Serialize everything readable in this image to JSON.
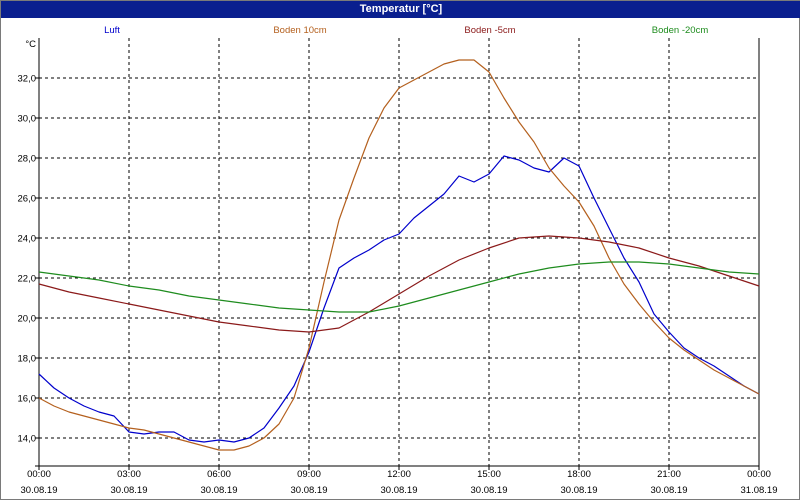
{
  "window": {
    "title": "Temperatur [°C]"
  },
  "chart_data": {
    "type": "line",
    "title": "Temperatur [°C]",
    "ylabel": "°C",
    "ylim": [
      12.6,
      34.0
    ],
    "y_ticks": [
      "14,0",
      "16,0",
      "18,0",
      "20,0",
      "22,0",
      "24,0",
      "26,0",
      "28,0",
      "30,0",
      "32,0"
    ],
    "y_tick_values": [
      14,
      16,
      18,
      20,
      22,
      24,
      26,
      28,
      30,
      32
    ],
    "xlim": [
      0,
      24
    ],
    "x_ticks": [
      {
        "time": "00:00",
        "date": "30.08.19"
      },
      {
        "time": "03:00",
        "date": "30.08.19"
      },
      {
        "time": "06:00",
        "date": "30.08.19"
      },
      {
        "time": "09:00",
        "date": "30.08.19"
      },
      {
        "time": "12:00",
        "date": "30.08.19"
      },
      {
        "time": "15:00",
        "date": "30.08.19"
      },
      {
        "time": "18:00",
        "date": "30.08.19"
      },
      {
        "time": "21:00",
        "date": "30.08.19"
      },
      {
        "time": "00:00",
        "date": "31.08.19"
      }
    ],
    "x_tick_hours": [
      0,
      3,
      6,
      9,
      12,
      15,
      18,
      21,
      24
    ],
    "grid": true,
    "legend_position": "top",
    "series": [
      {
        "name": "Luft",
        "color": "#0000cc",
        "x": [
          0,
          0.5,
          1,
          1.5,
          2,
          2.5,
          3,
          3.5,
          4,
          4.5,
          5,
          5.5,
          6,
          6.5,
          7,
          7.5,
          8,
          8.5,
          9,
          9.5,
          10,
          10.5,
          11,
          11.5,
          12,
          12.5,
          13,
          13.5,
          14,
          14.5,
          15,
          15.5,
          16,
          16.5,
          17,
          17.5,
          18,
          18.5,
          19,
          19.5,
          20,
          20.5,
          21,
          21.5,
          22,
          22.5,
          23,
          23.5,
          24
        ],
        "y": [
          17.2,
          16.5,
          16.0,
          15.6,
          15.3,
          15.1,
          14.3,
          14.2,
          14.3,
          14.3,
          13.9,
          13.8,
          13.9,
          13.8,
          14.0,
          14.5,
          15.5,
          16.6,
          18.3,
          20.5,
          22.5,
          23.0,
          23.4,
          23.9,
          24.2,
          25.0,
          25.6,
          26.2,
          27.1,
          26.8,
          27.2,
          28.1,
          27.9,
          27.5,
          27.3,
          28.0,
          27.6,
          26.0,
          24.5,
          23.0,
          21.8,
          20.2,
          19.3,
          18.5,
          18.0,
          17.6,
          17.1,
          16.6,
          16.2
        ]
      },
      {
        "name": "Boden 10cm",
        "color": "#b4601e",
        "x": [
          0,
          0.5,
          1,
          1.5,
          2,
          2.5,
          3,
          3.5,
          4,
          4.5,
          5,
          5.5,
          6,
          6.5,
          7,
          7.5,
          8,
          8.5,
          9,
          9.5,
          10,
          10.5,
          11,
          11.5,
          12,
          12.5,
          13,
          13.5,
          14,
          14.5,
          15,
          15.5,
          16,
          16.5,
          17,
          17.5,
          18,
          18.5,
          19,
          19.5,
          20,
          20.5,
          21,
          21.5,
          22,
          22.5,
          23,
          23.5,
          24
        ],
        "y": [
          16.0,
          15.6,
          15.3,
          15.1,
          14.9,
          14.7,
          14.5,
          14.4,
          14.2,
          14.0,
          13.8,
          13.6,
          13.4,
          13.4,
          13.6,
          14.0,
          14.7,
          16.0,
          18.5,
          21.8,
          24.9,
          27.0,
          29.0,
          30.5,
          31.5,
          31.9,
          32.3,
          32.7,
          32.9,
          32.9,
          32.3,
          31.0,
          29.8,
          28.8,
          27.5,
          26.6,
          25.8,
          24.6,
          23.0,
          21.7,
          20.7,
          19.8,
          19.0,
          18.4,
          17.9,
          17.4,
          17.0,
          16.6,
          16.2
        ]
      },
      {
        "name": "Boden -5cm",
        "color": "#8b1a1a",
        "x": [
          0,
          1,
          2,
          3,
          4,
          5,
          6,
          7,
          8,
          9,
          10,
          11,
          12,
          13,
          14,
          15,
          16,
          17,
          18,
          19,
          20,
          21,
          22,
          23,
          24
        ],
        "y": [
          21.7,
          21.3,
          21.0,
          20.7,
          20.4,
          20.1,
          19.8,
          19.6,
          19.4,
          19.3,
          19.5,
          20.3,
          21.2,
          22.1,
          22.9,
          23.5,
          24.0,
          24.1,
          24.0,
          23.8,
          23.5,
          23.0,
          22.6,
          22.1,
          21.6
        ]
      },
      {
        "name": "Boden -20cm",
        "color": "#1e8c1e",
        "x": [
          0,
          1,
          2,
          3,
          4,
          5,
          6,
          7,
          8,
          9,
          10,
          11,
          12,
          13,
          14,
          15,
          16,
          17,
          18,
          19,
          20,
          21,
          22,
          23,
          24
        ],
        "y": [
          22.3,
          22.1,
          21.9,
          21.6,
          21.4,
          21.1,
          20.9,
          20.7,
          20.5,
          20.4,
          20.3,
          20.3,
          20.6,
          21.0,
          21.4,
          21.8,
          22.2,
          22.5,
          22.7,
          22.8,
          22.8,
          22.7,
          22.5,
          22.3,
          22.2
        ]
      }
    ]
  }
}
